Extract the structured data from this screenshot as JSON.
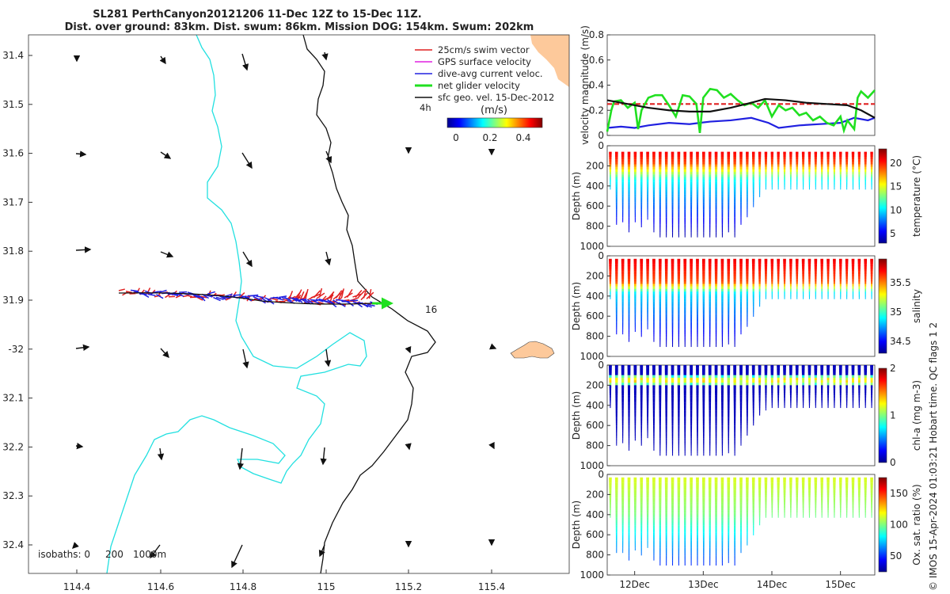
{
  "title_line1": "SL281 PerthCanyon20121206 11-Dec 12Z to 15-Dec 11Z.",
  "title_line2": "Dist. over ground: 83km. Dist. swum: 86km. Mission DOG: 154km. Swum: 202km",
  "watermark": "© IMOS 15-Apr-2024 01:03:21 Hobart time. QC flags 1  2",
  "isobath_legend": [
    "isobaths: 0",
    "200",
    "1000m"
  ],
  "map_legend": [
    {
      "label": "25cm/s swim vector",
      "color": "#e02020"
    },
    {
      "label": "GPS surface velocity",
      "color": "#e020e0"
    },
    {
      "label": "dive-avg current veloc.",
      "color": "#2020e0"
    },
    {
      "label": "net glider velocity",
      "color": "#20e020"
    },
    {
      "label": "sfc geo. vel. 15-Dec-2012",
      "color": "#111111"
    }
  ],
  "map_annotations": {
    "hours": "4h",
    "colorbar_unit": "(m/s)",
    "end_label": "16"
  },
  "map_colorbar_ticks": [
    "0",
    "0.2",
    "0.4"
  ],
  "map_x_ticks": [
    "114.4",
    "114.6",
    "114.8",
    "115",
    "115.2",
    "115.4"
  ],
  "map_y_ticks": [
    "31.4",
    "31.5",
    "31.6",
    "31.7",
    "31.8",
    "31.9",
    "-32",
    "32.1",
    "32.2",
    "32.3",
    "32.4"
  ],
  "time_ticks": [
    "12Dec",
    "13Dec",
    "14Dec",
    "15Dec"
  ],
  "colors": {
    "cyan": "#22e0e0",
    "land": "#fdc99b",
    "red": "#e02020",
    "blue": "#2020e0",
    "green": "#20e020"
  },
  "chart_data": [
    {
      "type": "line",
      "title": "",
      "ylabel": "velocity magnitude (m/s)",
      "ylim": [
        0,
        0.8
      ],
      "y_ticks": [
        "0",
        "0.2",
        "0.4",
        "0.6",
        "0.8"
      ],
      "xlim": [
        11.6,
        15.5
      ],
      "series": [
        {
          "name": "swim",
          "color": "#e02020",
          "dashed": true,
          "x": [
            11.6,
            15.5
          ],
          "y": [
            0.25,
            0.25
          ]
        },
        {
          "name": "current",
          "color": "#2020e0",
          "x": [
            11.6,
            11.8,
            12.0,
            12.2,
            12.5,
            12.8,
            13.1,
            13.4,
            13.7,
            13.95,
            14.1,
            14.4,
            14.7,
            15.0,
            15.2,
            15.4,
            15.5
          ],
          "y": [
            0.06,
            0.07,
            0.06,
            0.08,
            0.1,
            0.09,
            0.11,
            0.12,
            0.14,
            0.1,
            0.06,
            0.08,
            0.09,
            0.1,
            0.14,
            0.12,
            0.14
          ]
        },
        {
          "name": "net",
          "color": "#20e020",
          "x": [
            11.6,
            11.66,
            11.7,
            11.8,
            11.9,
            12.0,
            12.05,
            12.1,
            12.2,
            12.3,
            12.4,
            12.5,
            12.6,
            12.7,
            12.8,
            12.9,
            12.95,
            13.0,
            13.1,
            13.2,
            13.3,
            13.4,
            13.5,
            13.6,
            13.7,
            13.8,
            13.9,
            14.0,
            14.1,
            14.2,
            14.3,
            14.4,
            14.5,
            14.6,
            14.7,
            14.8,
            14.9,
            15.0,
            15.05,
            15.1,
            15.2,
            15.25,
            15.3,
            15.4,
            15.5
          ],
          "y": [
            0.03,
            0.2,
            0.27,
            0.28,
            0.22,
            0.26,
            0.05,
            0.2,
            0.3,
            0.32,
            0.32,
            0.24,
            0.15,
            0.32,
            0.31,
            0.25,
            0.02,
            0.3,
            0.37,
            0.36,
            0.3,
            0.33,
            0.28,
            0.24,
            0.26,
            0.22,
            0.28,
            0.15,
            0.24,
            0.2,
            0.22,
            0.16,
            0.18,
            0.12,
            0.15,
            0.1,
            0.08,
            0.15,
            0.04,
            0.12,
            0.05,
            0.3,
            0.35,
            0.3,
            0.36
          ]
        },
        {
          "name": "sfc geo",
          "color": "#111111",
          "x": [
            11.6,
            11.9,
            12.2,
            12.5,
            12.8,
            13.1,
            13.4,
            13.7,
            13.9,
            14.2,
            14.5,
            14.8,
            15.1,
            15.3,
            15.5
          ],
          "y": [
            0.28,
            0.25,
            0.22,
            0.2,
            0.19,
            0.19,
            0.22,
            0.26,
            0.29,
            0.28,
            0.26,
            0.25,
            0.24,
            0.2,
            0.14
          ]
        }
      ]
    },
    {
      "type": "heatmap",
      "variable": "temperature",
      "ylabel": "Depth (m)",
      "clabel": "temperature (°C)",
      "ylim": [
        1000,
        0
      ],
      "y_ticks": [
        "0",
        "200",
        "400",
        "600",
        "800",
        "1000"
      ],
      "c_ticks": [
        "5",
        "10",
        "15",
        "20"
      ],
      "crange": [
        2,
        23
      ],
      "profile_depths": [
        420,
        780,
        760,
        840,
        750,
        800,
        720,
        850,
        900,
        900,
        900,
        900,
        900,
        900,
        900,
        900,
        900,
        900,
        900,
        860,
        900,
        780,
        700,
        600,
        500,
        430,
        420,
        420,
        420,
        420,
        420,
        420,
        420,
        420,
        420,
        420,
        420,
        420,
        420,
        420,
        420,
        420,
        420
      ],
      "surface_top": 60
    },
    {
      "type": "heatmap",
      "variable": "salinity",
      "ylabel": "Depth (m)",
      "clabel": "salinity",
      "ylim": [
        1000,
        0
      ],
      "y_ticks": [
        "0",
        "200",
        "400",
        "600",
        "800",
        "1000"
      ],
      "c_ticks": [
        "34.5",
        "35",
        "35.5"
      ],
      "crange": [
        34.3,
        35.9
      ],
      "profile_depths": [
        420,
        780,
        760,
        840,
        750,
        800,
        720,
        850,
        900,
        900,
        900,
        900,
        900,
        900,
        900,
        900,
        900,
        900,
        900,
        860,
        900,
        780,
        700,
        600,
        500,
        430,
        420,
        420,
        420,
        420,
        420,
        420,
        420,
        420,
        420,
        420,
        420,
        420,
        420,
        420,
        420,
        420,
        420
      ],
      "surface_top": 30
    },
    {
      "type": "heatmap",
      "variable": "chl-a",
      "ylabel": "Depth (m)",
      "clabel": "chl-a (mg m-3)",
      "ylim": [
        1000,
        0
      ],
      "y_ticks": [
        "0",
        "200",
        "400",
        "600",
        "800",
        "1000"
      ],
      "c_ticks": [
        "0",
        "1",
        "2"
      ],
      "crange": [
        0,
        2
      ],
      "profile_depths": [
        420,
        780,
        760,
        840,
        750,
        800,
        720,
        850,
        900,
        900,
        900,
        900,
        900,
        900,
        900,
        900,
        900,
        900,
        900,
        860,
        900,
        780,
        700,
        600,
        500,
        430,
        420,
        420,
        420,
        420,
        420,
        420,
        420,
        420,
        420,
        420,
        420,
        420,
        420,
        420,
        420,
        420,
        420
      ],
      "surface_top": 0
    },
    {
      "type": "heatmap",
      "variable": "oxygen saturation",
      "ylabel": "Depth (m)",
      "clabel": "Ox. sat. ratio (%)",
      "ylim": [
        1000,
        0
      ],
      "y_ticks": [
        "0",
        "200",
        "400",
        "600",
        "800",
        "1000"
      ],
      "c_ticks": [
        "50",
        "100",
        "150"
      ],
      "crange": [
        25,
        175
      ],
      "profile_depths": [
        420,
        780,
        760,
        840,
        750,
        800,
        720,
        850,
        900,
        900,
        900,
        900,
        900,
        900,
        900,
        900,
        900,
        900,
        900,
        860,
        900,
        780,
        700,
        600,
        500,
        430,
        420,
        420,
        420,
        420,
        420,
        420,
        420,
        420,
        420,
        420,
        420,
        420,
        420,
        420,
        420,
        420,
        420
      ],
      "surface_top": 30
    }
  ]
}
